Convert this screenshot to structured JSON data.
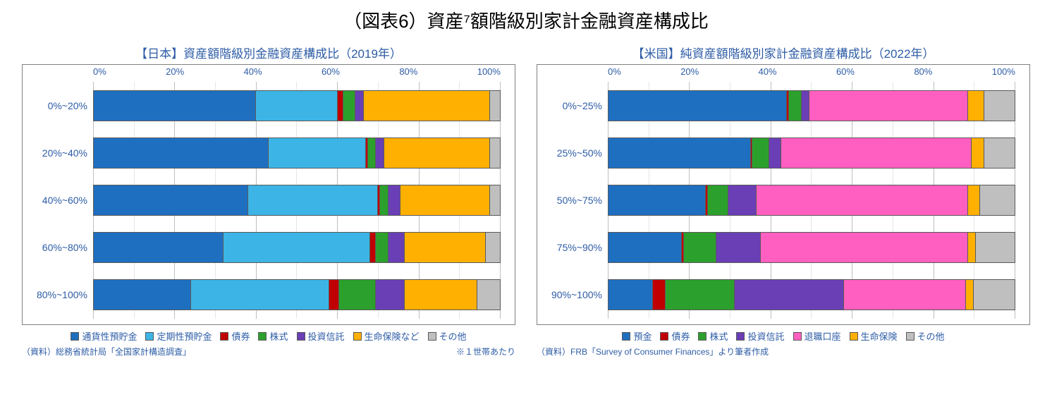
{
  "main_title": "（図表6）資産⁷額階級別家計金融資産構成比",
  "colors": {
    "title_text": "#2d5ca6",
    "border": "#808080",
    "grid": "#bfbfbf",
    "grid_minor": "#e6e6e6"
  },
  "left": {
    "title": "【日本】資産額階級別金融資産構成比（2019年）",
    "xticks": [
      "0%",
      "20%",
      "40%",
      "60%",
      "80%",
      "100%"
    ],
    "categories": [
      "0%~20%",
      "20%~40%",
      "40%~60%",
      "60%~80%",
      "80%~100%"
    ],
    "series": [
      {
        "name": "通貨性預貯金",
        "color": "#1f6fc0"
      },
      {
        "name": "定期性預貯金",
        "color": "#3cb4e6"
      },
      {
        "name": "債券",
        "color": "#c00000"
      },
      {
        "name": "株式",
        "color": "#2ca02c"
      },
      {
        "name": "投資信託",
        "color": "#6a3fb5"
      },
      {
        "name": "生命保険など",
        "color": "#ffb000"
      },
      {
        "name": "その他",
        "color": "#bfbfbf"
      }
    ],
    "data": [
      [
        40,
        20,
        1.5,
        3,
        2,
        31,
        2.5
      ],
      [
        43,
        24,
        0.5,
        2,
        2,
        26,
        2.5
      ],
      [
        38,
        32,
        0.5,
        2,
        3,
        22,
        2.5
      ],
      [
        32,
        36,
        1.5,
        3,
        4,
        20,
        3.5
      ],
      [
        24,
        34,
        2.5,
        9,
        7,
        18,
        5.5
      ]
    ],
    "source_left": "（資料）総務省統計局「全国家計構造調査」",
    "source_right": "※１世帯あたり"
  },
  "right": {
    "title": "【米国】純資産額階級別家計金融資産構成比（2022年）",
    "xticks": [
      "0%",
      "20%",
      "40%",
      "60%",
      "80%",
      "100%"
    ],
    "categories": [
      "0%~25%",
      "25%~50%",
      "50%~75%",
      "75%~90%",
      "90%~100%"
    ],
    "series": [
      {
        "name": "預金",
        "color": "#1f6fc0"
      },
      {
        "name": "債券",
        "color": "#c00000"
      },
      {
        "name": "株式",
        "color": "#2ca02c"
      },
      {
        "name": "投資信託",
        "color": "#6a3fb5"
      },
      {
        "name": "退職口座",
        "color": "#ff5fc0"
      },
      {
        "name": "生命保険",
        "color": "#ffb000"
      },
      {
        "name": "その他",
        "color": "#bfbfbf"
      }
    ],
    "data": [
      [
        44,
        0.5,
        3,
        2,
        39,
        4,
        7.5
      ],
      [
        35,
        0.5,
        4,
        3,
        47,
        3,
        7.5
      ],
      [
        24,
        0.5,
        5,
        7,
        52,
        3,
        8.5
      ],
      [
        18,
        0.5,
        8,
        11,
        51,
        2,
        9.5
      ],
      [
        11,
        3,
        17,
        27,
        30,
        2,
        10
      ]
    ],
    "source_left": "（資料）FRB「Survey of Consumer Finances」より筆者作成",
    "source_right": ""
  }
}
